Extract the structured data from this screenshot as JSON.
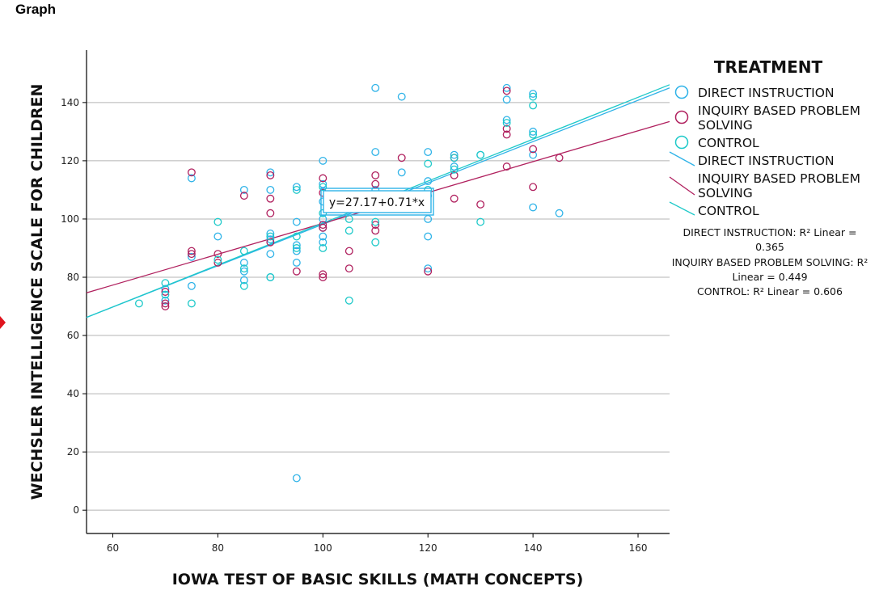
{
  "page": {
    "title": "Graph"
  },
  "colors": {
    "direct_instruction": "#2fb3e8",
    "inquiry_based": "#b0205e",
    "control": "#1ec9c9",
    "gridline": "#b4b4b4",
    "axis": "#000000",
    "marker": "#e0141e"
  },
  "chart_data": {
    "type": "scatter",
    "xlabel": "IOWA TEST OF BASIC SKILLS (MATH CONCEPTS)",
    "ylabel": "WECHSLER INTELLIGENCE SCALE FOR CHILDREN",
    "xlim": [
      55,
      166
    ],
    "ylim": [
      -8,
      158
    ],
    "xticks": [
      60,
      80,
      100,
      120,
      140,
      160
    ],
    "yticks": [
      0,
      20,
      40,
      60,
      80,
      100,
      120,
      140
    ],
    "grid": "horizontal",
    "legend": {
      "title": "TREATMENT",
      "placement": "right",
      "marker_entries": [
        "DIRECT INSTRUCTION",
        "INQUIRY BASED PROBLEM SOLVING",
        "CONTROL"
      ],
      "line_entries": [
        "DIRECT INSTRUCTION",
        "INQUIRY BASED PROBLEM SOLVING",
        "CONTROL"
      ]
    },
    "fit_annotation": "y=27.17+0.71*x",
    "r_squared_notes": [
      "DIRECT INSTRUCTION: R² Linear = 0.365",
      "INQUIRY BASED PROBLEM SOLVING: R² Linear = 0.449",
      "CONTROL: R² Linear = 0.606"
    ],
    "series": [
      {
        "name": "DIRECT INSTRUCTION",
        "marker": "circle",
        "points": [
          [
            70,
            76
          ],
          [
            70,
            72
          ],
          [
            75,
            114
          ],
          [
            75,
            87
          ],
          [
            75,
            77
          ],
          [
            80,
            94
          ],
          [
            85,
            110
          ],
          [
            85,
            85
          ],
          [
            85,
            82
          ],
          [
            85,
            79
          ],
          [
            90,
            116
          ],
          [
            90,
            110
          ],
          [
            90,
            95
          ],
          [
            90,
            93
          ],
          [
            90,
            88
          ],
          [
            90,
            80
          ],
          [
            95,
            111
          ],
          [
            95,
            99
          ],
          [
            95,
            91
          ],
          [
            95,
            89
          ],
          [
            95,
            85
          ],
          [
            95,
            11
          ],
          [
            100,
            120
          ],
          [
            100,
            112
          ],
          [
            100,
            106
          ],
          [
            100,
            100
          ],
          [
            100,
            97
          ],
          [
            100,
            94
          ],
          [
            100,
            92
          ],
          [
            110,
            145
          ],
          [
            110,
            123
          ],
          [
            110,
            110
          ],
          [
            115,
            142
          ],
          [
            115,
            116
          ],
          [
            120,
            123
          ],
          [
            120,
            113
          ],
          [
            120,
            108
          ],
          [
            120,
            100
          ],
          [
            120,
            94
          ],
          [
            120,
            83
          ],
          [
            125,
            122
          ],
          [
            125,
            118
          ],
          [
            130,
            122
          ],
          [
            135,
            145
          ],
          [
            135,
            141
          ],
          [
            135,
            134
          ],
          [
            140,
            143
          ],
          [
            140,
            130
          ],
          [
            140,
            122
          ],
          [
            140,
            104
          ],
          [
            145,
            102
          ]
        ]
      },
      {
        "name": "INQUIRY BASED PROBLEM SOLVING",
        "marker": "circle",
        "points": [
          [
            70,
            75
          ],
          [
            70,
            71
          ],
          [
            70,
            70
          ],
          [
            75,
            116
          ],
          [
            75,
            89
          ],
          [
            75,
            88
          ],
          [
            80,
            88
          ],
          [
            80,
            85
          ],
          [
            85,
            108
          ],
          [
            90,
            115
          ],
          [
            90,
            107
          ],
          [
            90,
            102
          ],
          [
            90,
            92
          ],
          [
            95,
            82
          ],
          [
            100,
            114
          ],
          [
            100,
            109
          ],
          [
            100,
            98
          ],
          [
            100,
            97
          ],
          [
            100,
            81
          ],
          [
            100,
            80
          ],
          [
            105,
            89
          ],
          [
            105,
            83
          ],
          [
            110,
            115
          ],
          [
            110,
            112
          ],
          [
            110,
            98
          ],
          [
            110,
            96
          ],
          [
            115,
            121
          ],
          [
            120,
            82
          ],
          [
            125,
            121
          ],
          [
            125,
            115
          ],
          [
            125,
            107
          ],
          [
            130,
            105
          ],
          [
            135,
            144
          ],
          [
            135,
            131
          ],
          [
            135,
            129
          ],
          [
            135,
            118
          ],
          [
            140,
            124
          ],
          [
            140,
            111
          ],
          [
            145,
            121
          ]
        ]
      },
      {
        "name": "CONTROL",
        "marker": "circle",
        "points": [
          [
            65,
            71
          ],
          [
            70,
            78
          ],
          [
            70,
            74
          ],
          [
            75,
            71
          ],
          [
            80,
            99
          ],
          [
            80,
            86
          ],
          [
            85,
            89
          ],
          [
            85,
            83
          ],
          [
            85,
            77
          ],
          [
            90,
            94
          ],
          [
            90,
            80
          ],
          [
            95,
            110
          ],
          [
            95,
            94
          ],
          [
            95,
            90
          ],
          [
            100,
            111
          ],
          [
            100,
            102
          ],
          [
            100,
            90
          ],
          [
            105,
            100
          ],
          [
            105,
            96
          ],
          [
            105,
            72
          ],
          [
            110,
            92
          ],
          [
            110,
            99
          ],
          [
            120,
            119
          ],
          [
            120,
            110
          ],
          [
            125,
            121
          ],
          [
            125,
            117
          ],
          [
            130,
            122
          ],
          [
            130,
            99
          ],
          [
            135,
            133
          ],
          [
            140,
            139
          ],
          [
            140,
            142
          ],
          [
            140,
            129
          ]
        ]
      }
    ],
    "fit_lines": [
      {
        "name": "DIRECT INSTRUCTION",
        "intercept": 27.17,
        "slope": 0.71,
        "x_range": [
          55,
          166
        ]
      },
      {
        "name": "INQUIRY BASED PROBLEM SOLVING",
        "intercept": 45.5,
        "slope": 0.53,
        "x_range": [
          55,
          166
        ]
      },
      {
        "name": "CONTROL",
        "intercept": 26.6,
        "slope": 0.72,
        "x_range": [
          55,
          166
        ]
      }
    ]
  }
}
